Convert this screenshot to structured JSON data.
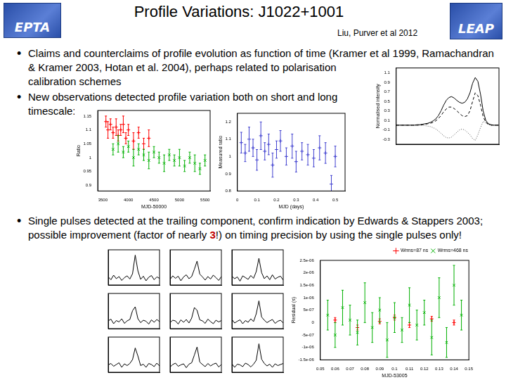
{
  "header": {
    "title": "Profile Variations: J1022+1001",
    "author": "Liu, Purver et al 2012",
    "logo_left": "EPTA",
    "logo_right": "LEAP"
  },
  "bullets": [
    {
      "parts": [
        {
          "text": "Claims and counterclaims of profile evolution as function of time (Kramer et al 1999, Ramachandran & Kramer 2003, Hotan et al. 2004), perhaps related to polarisation calibration schemes"
        }
      ]
    },
    {
      "parts": [
        {
          "text": "New observations detected profile variation both on short and long timescale:"
        }
      ]
    },
    {
      "parts": [
        {
          "text": "Single pulses detected at the trailing component, confirm indication by Edwards & Stappers 2003; possible improvement (factor of nearly "
        },
        {
          "text": "3",
          "color": "#c00000"
        },
        {
          "text": "!) on timing precision by using the single pulses only!"
        }
      ]
    }
  ],
  "chart_data": [
    {
      "type": "line",
      "ylabel": "Normalised intensity",
      "tick_labels": "y",
      "grid": false,
      "x": [
        0,
        1,
        2,
        3,
        4,
        5,
        6,
        7,
        8,
        9,
        10,
        11,
        12,
        13,
        14,
        15,
        16,
        17,
        18,
        19,
        20,
        21,
        22,
        23,
        24,
        25,
        26,
        27,
        28,
        29,
        30,
        31,
        32,
        33,
        34,
        35,
        36,
        37,
        38,
        39
      ],
      "xlim": [
        0,
        39
      ],
      "ylim": [
        -0.4,
        1.2
      ],
      "yticks": [
        -0.3,
        -0.1,
        0.1,
        0.3,
        0.5,
        0.7,
        0.9,
        1.1
      ],
      "series": [
        {
          "color": "#000000",
          "line_style": "solid",
          "values": [
            0,
            0,
            0,
            0,
            0,
            0,
            0,
            0,
            0.01,
            0.01,
            0.02,
            0.03,
            0.04,
            0.06,
            0.09,
            0.13,
            0.2,
            0.3,
            0.42,
            0.52,
            0.58,
            0.6,
            0.57,
            0.52,
            0.48,
            0.46,
            0.48,
            0.55,
            0.68,
            0.88,
            1.0,
            0.92,
            0.65,
            0.3,
            0.1,
            0.03,
            0.01,
            0,
            0,
            0
          ]
        },
        {
          "color": "#000000",
          "line_style": "dashed",
          "values": [
            0,
            0,
            0,
            0,
            0,
            0,
            0,
            0,
            0,
            0,
            0.01,
            0.02,
            0.03,
            0.04,
            0.06,
            0.09,
            0.14,
            0.2,
            0.28,
            0.34,
            0.38,
            0.38,
            0.35,
            0.3,
            0.25,
            0.2,
            0.18,
            0.2,
            0.3,
            0.5,
            0.68,
            0.62,
            0.42,
            0.18,
            0.06,
            0.02,
            0,
            0,
            0,
            0
          ]
        },
        {
          "color": "#555555",
          "line_style": "dotted",
          "values": [
            0,
            0,
            0,
            0,
            0,
            0,
            0,
            0,
            0,
            0,
            0,
            -0.01,
            -0.02,
            -0.03,
            -0.05,
            -0.08,
            -0.12,
            -0.17,
            -0.22,
            -0.26,
            -0.27,
            -0.25,
            -0.2,
            -0.15,
            -0.1,
            -0.08,
            -0.1,
            -0.15,
            -0.2,
            -0.28,
            -0.32,
            -0.2,
            -0.05,
            0.08,
            0.05,
            0.01,
            0,
            0,
            0,
            0
          ]
        }
      ]
    },
    {
      "type": "scatter",
      "xlabel": "MJD-50000",
      "ylabel": "Ratio",
      "grid": false,
      "xlim": [
        3400,
        5600
      ],
      "xticks": [
        3500,
        4000,
        4500,
        5000,
        5500
      ],
      "ylim": [
        0.88,
        1.17
      ],
      "yticks": [
        0.9,
        0.95,
        1,
        1.05,
        1.1,
        1.15
      ],
      "series": [
        {
          "color": "#ff0000",
          "marker": "plus",
          "x": [
            3560,
            3600,
            3650,
            3700,
            3760,
            3800,
            3850,
            3900,
            3950,
            4000,
            4100,
            4200,
            4300,
            4400
          ],
          "values": [
            1.13,
            1.1,
            1.12,
            1.09,
            1.11,
            1.08,
            1.1,
            1.12,
            1.07,
            1.1,
            1.06,
            1.09,
            1.05,
            1.07
          ],
          "errors": [
            0.02,
            0.03,
            0.02,
            0.02,
            0.03,
            0.02,
            0.02,
            0.03,
            0.02,
            0.02,
            0.03,
            0.02,
            0.02,
            0.03
          ]
        },
        {
          "color": "#00b000",
          "marker": "x",
          "x": [
            3700,
            3800,
            3900,
            4000,
            4100,
            4200,
            4300,
            4400,
            4500,
            4600,
            4700,
            4800,
            4900,
            5000,
            5100,
            5200,
            5300,
            5400,
            5500
          ],
          "values": [
            1.03,
            1.05,
            1.02,
            1.04,
            1.0,
            1.03,
            1.01,
            0.99,
            1.02,
            1.0,
            0.98,
            1.01,
            0.99,
            1.0,
            0.97,
            1.0,
            0.98,
            0.96,
            0.99
          ],
          "errors": [
            0.02,
            0.03,
            0.02,
            0.02,
            0.03,
            0.02,
            0.02,
            0.03,
            0.02,
            0.02,
            0.03,
            0.02,
            0.02,
            0.03,
            0.02,
            0.02,
            0.03,
            0.02,
            0.02
          ]
        }
      ]
    },
    {
      "type": "scatter",
      "xlabel": "MJD (days)",
      "ylabel": "Measured ratio",
      "grid": false,
      "xlim": [
        0,
        0.55
      ],
      "xticks": [
        0,
        0.1,
        0.2,
        0.3,
        0.4,
        0.5
      ],
      "ylim": [
        0.8,
        1.25
      ],
      "yticks": [
        0.8,
        0.9,
        1,
        1.1,
        1.2
      ],
      "series": [
        {
          "color": "#4040d0",
          "marker": "plus",
          "x": [
            0.02,
            0.04,
            0.06,
            0.08,
            0.1,
            0.12,
            0.14,
            0.16,
            0.18,
            0.2,
            0.22,
            0.25,
            0.28,
            0.3,
            0.33,
            0.36,
            0.39,
            0.42,
            0.45,
            0.48,
            0.5
          ],
          "values": [
            1.08,
            1.02,
            1.1,
            1.05,
            0.98,
            1.12,
            1.03,
            1.07,
            0.95,
            1.04,
            1.09,
            1.0,
            1.06,
            0.97,
            1.03,
            1.01,
            0.99,
            1.05,
            1.02,
            0.84,
            1.0
          ],
          "errors": [
            0.06,
            0.05,
            0.07,
            0.05,
            0.06,
            0.08,
            0.05,
            0.06,
            0.07,
            0.05,
            0.06,
            0.05,
            0.07,
            0.06,
            0.05,
            0.06,
            0.05,
            0.07,
            0.06,
            0.05,
            0.06
          ]
        }
      ]
    },
    {
      "type": "line",
      "tick_labels": false,
      "grid": false,
      "xlim": [
        1,
        20
      ],
      "ylim": [
        -2,
        8
      ],
      "x": [
        1,
        2,
        3,
        4,
        5,
        6,
        7,
        8,
        9,
        10,
        11,
        12,
        13,
        14,
        15,
        16,
        17,
        18,
        19,
        20
      ],
      "series": [
        {
          "color": "#000000",
          "line_style": "solid",
          "values": [
            0.3,
            -0.5,
            0.8,
            -0.2,
            0.4,
            -0.7,
            0.1,
            0.6,
            -0.3,
            1.2,
            6.5,
            2.0,
            -0.4,
            0.5,
            -0.8,
            0.2,
            0.7,
            -0.5,
            0.3,
            -0.1
          ]
        }
      ]
    },
    {
      "type": "line",
      "tick_labels": false,
      "grid": false,
      "xlim": [
        1,
        20
      ],
      "ylim": [
        -2,
        8
      ],
      "x": [
        1,
        2,
        3,
        4,
        5,
        6,
        7,
        8,
        9,
        10,
        11,
        12,
        13,
        14,
        15,
        16,
        17,
        18,
        19,
        20
      ],
      "series": [
        {
          "color": "#000000",
          "line_style": "solid",
          "values": [
            -0.4,
            0.6,
            -0.1,
            0.5,
            -0.8,
            0.3,
            0.9,
            -0.2,
            0.4,
            2.5,
            4.8,
            1.1,
            0.3,
            -0.6,
            0.4,
            -0.3,
            0.8,
            0.1,
            -0.7,
            0.4
          ]
        }
      ]
    },
    {
      "type": "line",
      "tick_labels": false,
      "grid": false,
      "xlim": [
        1,
        20
      ],
      "ylim": [
        -2,
        8
      ],
      "x": [
        1,
        2,
        3,
        4,
        5,
        6,
        7,
        8,
        9,
        10,
        11,
        12,
        13,
        14,
        15,
        16,
        17,
        18,
        19,
        20
      ],
      "series": [
        {
          "color": "#000000",
          "line_style": "solid",
          "values": [
            0.5,
            -0.2,
            0.3,
            -0.9,
            0.6,
            0.1,
            -0.4,
            0.7,
            -0.1,
            1.8,
            5.6,
            1.5,
            -0.2,
            0.6,
            -0.5,
            0.9,
            -0.3,
            0.2,
            0.5,
            -0.6
          ]
        }
      ]
    },
    {
      "type": "line",
      "tick_labels": false,
      "grid": false,
      "xlim": [
        1,
        20
      ],
      "ylim": [
        -2,
        8
      ],
      "x": [
        1,
        2,
        3,
        4,
        5,
        6,
        7,
        8,
        9,
        10,
        11,
        12,
        13,
        14,
        15,
        16,
        17,
        18,
        19,
        20
      ],
      "series": [
        {
          "color": "#000000",
          "line_style": "solid",
          "values": [
            0.2,
            0.7,
            -0.6,
            0.3,
            -0.1,
            0.8,
            -0.5,
            0.2,
            0.6,
            3.1,
            4.2,
            0.8,
            -0.3,
            0.4,
            0.1,
            -0.7,
            0.5,
            -0.2,
            0.6,
            0.0
          ]
        }
      ]
    },
    {
      "type": "line",
      "tick_labels": false,
      "grid": false,
      "xlim": [
        1,
        20
      ],
      "ylim": [
        -2,
        8
      ],
      "x": [
        1,
        2,
        3,
        4,
        5,
        6,
        7,
        8,
        9,
        10,
        11,
        12,
        13,
        14,
        15,
        16,
        17,
        18,
        19,
        20
      ],
      "series": [
        {
          "color": "#000000",
          "line_style": "solid",
          "values": [
            -0.3,
            0.4,
            0.2,
            -0.7,
            0.5,
            -0.2,
            0.6,
            -0.4,
            1.0,
            4.0,
            3.2,
            0.5,
            0.2,
            -0.5,
            0.7,
            0.0,
            -0.6,
            0.4,
            -0.1,
            0.3
          ]
        }
      ]
    },
    {
      "type": "line",
      "tick_labels": false,
      "grid": false,
      "xlim": [
        1,
        20
      ],
      "ylim": [
        -2,
        8
      ],
      "x": [
        1,
        2,
        3,
        4,
        5,
        6,
        7,
        8,
        9,
        10,
        11,
        12,
        13,
        14,
        15,
        16,
        17,
        18,
        19,
        20
      ],
      "series": [
        {
          "color": "#000000",
          "line_style": "solid",
          "values": [
            0.6,
            -0.4,
            0.1,
            0.5,
            -0.6,
            0.3,
            -0.2,
            0.8,
            0.0,
            2.2,
            5.9,
            1.3,
            0.4,
            -0.3,
            0.2,
            0.6,
            -0.5,
            0.1,
            0.4,
            -0.4
          ]
        }
      ]
    },
    {
      "type": "line",
      "tick_labels": false,
      "grid": false,
      "xlim": [
        1,
        20
      ],
      "ylim": [
        -2,
        8
      ],
      "x": [
        1,
        2,
        3,
        4,
        5,
        6,
        7,
        8,
        9,
        10,
        11,
        12,
        13,
        14,
        15,
        16,
        17,
        18,
        19,
        20
      ],
      "series": [
        {
          "color": "#000000",
          "line_style": "solid",
          "values": [
            0.1,
            0.5,
            -0.3,
            0.2,
            0.7,
            -0.6,
            0.4,
            -0.1,
            0.5,
            1.6,
            4.9,
            2.6,
            -0.1,
            0.3,
            -0.6,
            0.5,
            0.2,
            -0.4,
            0.6,
            -0.2
          ]
        }
      ]
    },
    {
      "type": "line",
      "tick_labels": false,
      "grid": false,
      "xlim": [
        1,
        20
      ],
      "ylim": [
        -2,
        8
      ],
      "x": [
        1,
        2,
        3,
        4,
        5,
        6,
        7,
        8,
        9,
        10,
        11,
        12,
        13,
        14,
        15,
        16,
        17,
        18,
        19,
        20
      ],
      "series": [
        {
          "color": "#000000",
          "line_style": "solid",
          "values": [
            -0.5,
            0.2,
            0.6,
            -0.3,
            0.1,
            0.4,
            -0.7,
            0.3,
            0.7,
            2.9,
            5.2,
            0.9,
            0.2,
            -0.4,
            0.5,
            -0.2,
            0.3,
            0.6,
            -0.5,
            0.2
          ]
        }
      ]
    },
    {
      "type": "line",
      "tick_labels": false,
      "grid": false,
      "xlim": [
        1,
        20
      ],
      "ylim": [
        -2,
        8
      ],
      "x": [
        1,
        2,
        3,
        4,
        5,
        6,
        7,
        8,
        9,
        10,
        11,
        12,
        13,
        14,
        15,
        16,
        17,
        18,
        19,
        20
      ],
      "series": [
        {
          "color": "#000000",
          "line_style": "solid",
          "values": [
            0.4,
            -0.6,
            0.3,
            0.1,
            -0.4,
            0.6,
            0.2,
            -0.5,
            0.3,
            1.4,
            6.1,
            1.7,
            0.5,
            -0.2,
            0.3,
            -0.6,
            0.4,
            -0.1,
            0.2,
            0.5
          ]
        }
      ]
    },
    {
      "type": "scatter",
      "xlabel": "MJD-53005",
      "ylabel": "Residual (s)",
      "grid": false,
      "legend": "top-right",
      "xlim": [
        0.05,
        0.15
      ],
      "xticks": [
        0.05,
        0.06,
        0.07,
        0.08,
        0.09,
        0.1,
        0.11,
        0.12,
        0.13,
        0.14,
        0.15
      ],
      "ylim": [
        -1.5e-06,
        2.5e-06
      ],
      "yticks": [
        {
          "value": -1.5e-06,
          "label": "-1.5e-06"
        },
        {
          "value": -1e-06,
          "label": "-1e-06"
        },
        {
          "value": -5e-07,
          "label": "-5e-07"
        },
        0,
        {
          "value": 5e-07,
          "label": "5e-07"
        },
        {
          "value": 1e-06,
          "label": "1e-06"
        },
        {
          "value": 1.5e-06,
          "label": "1.5e-06"
        },
        {
          "value": 2e-06,
          "label": "2e-06"
        },
        {
          "value": 2.5e-06,
          "label": "2.5e-06"
        }
      ],
      "series": [
        {
          "name": "Wrms=87 ns",
          "color": "#ff0000",
          "marker": "plus",
          "x": [
            0.06,
            0.075,
            0.09,
            0.1,
            0.11,
            0.125,
            0.14
          ],
          "values": [
            1e-07,
            -2e-07,
            5e-08,
            2e-07,
            -1e-07,
            1.5e-07,
            0
          ],
          "errors": [
            1e-07,
            1e-07,
            1e-07,
            1e-07,
            1e-07,
            1e-07,
            1e-07
          ]
        },
        {
          "name": "Wrms=468 ns",
          "color": "#00b000",
          "marker": "x",
          "x": [
            0.055,
            0.06,
            0.065,
            0.07,
            0.075,
            0.08,
            0.085,
            0.09,
            0.095,
            0.1,
            0.105,
            0.11,
            0.115,
            0.12,
            0.125,
            0.13,
            0.135,
            0.14,
            0.145
          ],
          "values": [
            3e-07,
            -5e-07,
            6e-07,
            1e-07,
            -4e-07,
            8e-07,
            -2e-07,
            5e-07,
            -7e-07,
            2e-07,
            -3e-07,
            7e-07,
            -1e-07,
            4e-07,
            -6e-07,
            1e-06,
            -8e-07,
            1.5e-06,
            3e-07
          ],
          "errors": [
            6e-07,
            5e-07,
            7e-07,
            6e-07,
            5e-07,
            8e-07,
            6e-07,
            5e-07,
            7e-07,
            6e-07,
            5e-07,
            7e-07,
            6e-07,
            5e-07,
            7e-07,
            8e-07,
            6e-07,
            8e-07,
            6e-07
          ]
        }
      ]
    }
  ]
}
